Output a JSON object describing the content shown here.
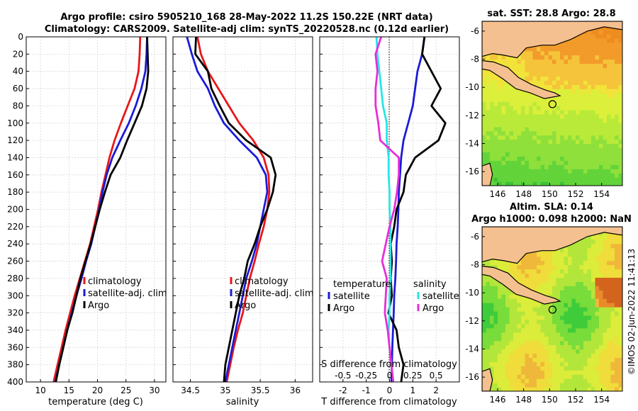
{
  "header": {
    "title_line1": "Argo profile: csiro 5905210_168 28-May-2022 11.2S 150.22E (NRT data)",
    "title_line2": "Climatology: CARS2009. Satellite-adj clim: synTS_20220528.nc (0.12d earlier)"
  },
  "colors": {
    "climatology": "#e8171a",
    "satellite": "#1b1bd8",
    "argo": "#000000",
    "satellite_salinity": "#27e6e6",
    "argo_salinity": "#e62ed8",
    "land": "#f5c08f"
  },
  "chart_data": [
    {
      "type": "line",
      "id": "temperature",
      "xlabel": "temperature (deg C)",
      "xlim": [
        7.5,
        32
      ],
      "ylim": [
        400,
        0
      ],
      "xticks": [
        10,
        15,
        20,
        25,
        30
      ],
      "yticks": [
        0,
        20,
        40,
        60,
        80,
        100,
        120,
        140,
        160,
        180,
        200,
        220,
        240,
        260,
        280,
        300,
        320,
        340,
        360,
        380,
        400
      ],
      "legend": [
        "climatology",
        "satellite-adj. clim",
        "Argo"
      ],
      "legend_position": "lower-right",
      "series": [
        {
          "name": "climatology",
          "color_key": "climatology",
          "x": [
            27.5,
            27.4,
            27.2,
            26.5,
            25.3,
            24.1,
            23.0,
            22.1,
            21.4,
            20.7,
            20.1,
            19.4,
            18.7,
            17.8,
            16.9,
            16.0,
            15.2,
            14.4,
            13.7,
            13.0,
            12.3
          ],
          "y": [
            0,
            20,
            40,
            60,
            80,
            100,
            120,
            140,
            160,
            180,
            200,
            220,
            240,
            260,
            280,
            300,
            320,
            340,
            360,
            380,
            400
          ]
        },
        {
          "name": "satellite-adj. clim",
          "color_key": "satellite",
          "x": [
            28.7,
            28.6,
            28.4,
            27.7,
            26.7,
            25.5,
            24.0,
            22.6,
            21.6,
            20.9,
            20.3,
            19.6,
            18.9,
            18.0,
            17.2,
            16.3,
            15.5,
            14.7,
            14.0,
            13.3,
            12.6
          ],
          "y": [
            0,
            20,
            40,
            60,
            80,
            100,
            120,
            140,
            160,
            180,
            200,
            220,
            240,
            260,
            280,
            300,
            320,
            340,
            360,
            380,
            400
          ]
        },
        {
          "name": "Argo",
          "color_key": "argo",
          "x": [
            28.7,
            28.8,
            28.9,
            28.6,
            27.8,
            26.5,
            25.2,
            24.0,
            22.3,
            21.3,
            20.4,
            19.6,
            18.8,
            17.9,
            17.0,
            16.3,
            15.6,
            14.7,
            14.0,
            13.3,
            12.7
          ],
          "y": [
            0,
            20,
            40,
            60,
            80,
            100,
            120,
            140,
            160,
            180,
            200,
            220,
            240,
            260,
            280,
            300,
            320,
            340,
            360,
            380,
            400
          ]
        }
      ]
    },
    {
      "type": "line",
      "id": "salinity",
      "xlabel": "salinity",
      "xlim": [
        34.25,
        36.25
      ],
      "ylim": [
        400,
        0
      ],
      "xticks": [
        34.5,
        35,
        35.5,
        36
      ],
      "legend": [
        "climatology",
        "satellite-adj. clim",
        "Argo"
      ],
      "legend_position": "lower-right",
      "series": [
        {
          "name": "climatology",
          "color_key": "climatology",
          "x": [
            34.6,
            34.65,
            34.75,
            34.9,
            35.05,
            35.2,
            35.4,
            35.55,
            35.62,
            35.63,
            35.6,
            35.55,
            35.48,
            35.42,
            35.35,
            35.3,
            35.25,
            35.18,
            35.12,
            35.07,
            35.02
          ],
          "y": [
            0,
            20,
            40,
            60,
            80,
            100,
            120,
            140,
            160,
            180,
            200,
            220,
            240,
            260,
            280,
            300,
            320,
            340,
            360,
            380,
            400
          ]
        },
        {
          "name": "satellite-adj. clim",
          "color_key": "satellite",
          "x": [
            34.45,
            34.52,
            34.6,
            34.75,
            34.85,
            34.98,
            35.2,
            35.45,
            35.58,
            35.6,
            35.55,
            35.5,
            35.45,
            35.38,
            35.3,
            35.25,
            35.2,
            35.15,
            35.1,
            35.05,
            35.0
          ],
          "y": [
            0,
            20,
            40,
            60,
            80,
            100,
            120,
            140,
            160,
            180,
            200,
            220,
            240,
            260,
            280,
            300,
            320,
            340,
            360,
            380,
            400
          ]
        },
        {
          "name": "Argo",
          "color_key": "argo",
          "x": [
            34.58,
            34.57,
            34.75,
            34.8,
            34.92,
            35.05,
            35.3,
            35.65,
            35.72,
            35.68,
            35.6,
            35.5,
            35.42,
            35.32,
            35.27,
            35.2,
            35.15,
            35.1,
            35.05,
            35.0,
            34.98
          ],
          "y": [
            0,
            20,
            40,
            60,
            80,
            100,
            120,
            140,
            160,
            180,
            200,
            220,
            240,
            260,
            280,
            300,
            320,
            340,
            360,
            380,
            400
          ]
        }
      ]
    },
    {
      "type": "line",
      "id": "difference",
      "xlabel": "T difference from climatology",
      "xlabel_top": "S difference from climatology",
      "xlim": [
        -3,
        3
      ],
      "ylim": [
        400,
        0
      ],
      "xticks": [
        -2,
        -1,
        0,
        1,
        2
      ],
      "xticks_s": [
        -0.5,
        -0.25,
        0,
        0.25,
        0.5
      ],
      "legend_temperature_title": "temperature",
      "legend_salinity_title": "salinity",
      "legend_temperature": [
        "satellite",
        "Argo"
      ],
      "legend_salinity": [
        "satellite",
        "Argo"
      ],
      "series": [
        {
          "name": "T satellite",
          "color_key": "satellite",
          "x": [
            1.5,
            1.4,
            1.2,
            1.1,
            1.0,
            0.8,
            0.6,
            0.5,
            0.45,
            0.4,
            0.38,
            0.35,
            0.3,
            0.28,
            0.25,
            0.2,
            0.18,
            0.15,
            0.12,
            0.1,
            0.08
          ],
          "y": [
            0,
            20,
            40,
            60,
            80,
            100,
            120,
            140,
            160,
            180,
            200,
            220,
            240,
            260,
            280,
            300,
            320,
            340,
            360,
            380,
            400
          ]
        },
        {
          "name": "T Argo",
          "color_key": "argo",
          "x": [
            1.5,
            1.4,
            1.8,
            2.2,
            1.8,
            2.4,
            2.1,
            1.1,
            0.7,
            0.6,
            0.3,
            0.2,
            0.05,
            0.1,
            0.05,
            0.1,
            -0.05,
            0.3,
            0.4,
            0.6,
            0.5
          ],
          "y": [
            0,
            20,
            40,
            60,
            80,
            100,
            120,
            140,
            160,
            180,
            200,
            220,
            240,
            260,
            280,
            300,
            320,
            340,
            360,
            380,
            400
          ]
        },
        {
          "name": "S satellite",
          "color_key": "satellite_salinity",
          "x": [
            -0.14,
            -0.13,
            -0.11,
            -0.09,
            -0.07,
            -0.03,
            -0.03,
            -0.01,
            -0.01,
            0.0,
            0.0,
            0.01,
            0.01,
            0.01,
            0.01,
            0.0,
            0.0,
            -0.01,
            0.0,
            0.02,
            0.04
          ],
          "y": [
            0,
            20,
            40,
            60,
            80,
            100,
            120,
            140,
            160,
            180,
            200,
            220,
            240,
            260,
            280,
            300,
            320,
            340,
            360,
            380,
            400
          ]
        },
        {
          "name": "S Argo",
          "color_key": "argo_salinity",
          "x": [
            -0.09,
            -0.15,
            -0.13,
            -0.15,
            -0.15,
            -0.12,
            -0.1,
            0.1,
            0.1,
            0.08,
            0.05,
            0.0,
            -0.04,
            -0.08,
            -0.03,
            -0.04,
            -0.05,
            -0.02,
            0.0,
            0.02,
            0.04
          ],
          "y": [
            0,
            20,
            40,
            60,
            80,
            100,
            120,
            140,
            160,
            180,
            200,
            220,
            240,
            260,
            280,
            300,
            320,
            340,
            360,
            380,
            400
          ]
        }
      ]
    },
    {
      "type": "heatmap",
      "id": "sst-map",
      "title": "sat. SST: 28.8 Argo: 28.8",
      "xticks": [
        146,
        148,
        150,
        152,
        154
      ],
      "yticks": [
        -6,
        -8,
        -10,
        -12,
        -14,
        -16
      ],
      "xlim": [
        144.8,
        155.6
      ],
      "ylim": [
        -17,
        -5.3
      ],
      "argo_position": [
        150.22,
        -11.2
      ]
    },
    {
      "type": "heatmap",
      "id": "sla-map",
      "title_line1": "Altim. SLA: 0.14",
      "title_line2": "Argo h1000: 0.098 h2000: NaN",
      "xticks": [
        146,
        148,
        150,
        152,
        154
      ],
      "yticks": [
        -6,
        -8,
        -10,
        -12,
        -14,
        -16
      ],
      "xlim": [
        144.8,
        155.6
      ],
      "ylim": [
        -17,
        -5.3
      ],
      "argo_position": [
        150.22,
        -11.2
      ]
    }
  ],
  "footer": {
    "credit": "©IMOS 02-Jun-2022 11:41:13"
  }
}
